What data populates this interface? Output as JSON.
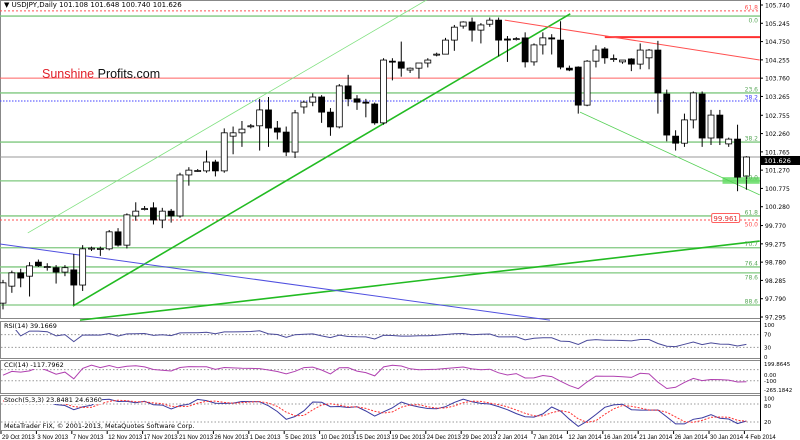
{
  "header": {
    "symbol": "USDJPY,Daily",
    "open": "101.108",
    "high": "101.648",
    "low": "100.740",
    "close": "101.626"
  },
  "logo": {
    "part1": "Sunshine",
    "part2": "Profits.com"
  },
  "watermark": "MetaTrader FIX, © 2001-2013, MetaQuotes Software Corp.",
  "indicators": {
    "rsi": {
      "label": "RSI(14) 39.1669",
      "axis": [
        "100",
        "70",
        "30",
        "0"
      ]
    },
    "cci": {
      "label": "CCI(14) -117.7962",
      "axis": [
        "199.8645",
        "0.00",
        "-100",
        "-265.1842"
      ]
    },
    "stoch": {
      "label": "Stoch(5,3,3) 23.8481 24.6360",
      "axis": [
        "100",
        "80",
        "20"
      ]
    }
  },
  "colors": {
    "bull": "#ffffff",
    "bear": "#000000",
    "fib": "#6fbf6f",
    "red": "#ff5050",
    "trend_green": "#22bb22",
    "blue": "#5050e0",
    "rsi": "#4a4a9a",
    "cci": "#b040b0"
  },
  "chart_data": {
    "type": "candlestick",
    "title": "USDJPY,Daily",
    "ylim": [
      97.295,
      105.74
    ],
    "price_ticks": [
      "105.740",
      "105.245",
      "104.750",
      "104.255",
      "103.760",
      "103.265",
      "102.755",
      "102.260",
      "101.765",
      "101.270",
      "100.775",
      "100.280",
      "99.770",
      "99.275",
      "98.780",
      "98.285",
      "97.790",
      "97.295"
    ],
    "current_price": "101.626",
    "dates": [
      {
        "label": "29 Oct 2013",
        "bar": 0
      },
      {
        "label": "3 Nov 2013",
        "bar": 4
      },
      {
        "label": "7 Nov 2013",
        "bar": 8
      },
      {
        "label": "12 Nov 2013",
        "bar": 12
      },
      {
        "label": "17 Nov 2013",
        "bar": 16
      },
      {
        "label": "21 Nov 2013",
        "bar": 20
      },
      {
        "label": "26 Nov 2013",
        "bar": 24
      },
      {
        "label": "1 Dec 2013",
        "bar": 28
      },
      {
        "label": "5 Dec 2013",
        "bar": 32
      },
      {
        "label": "10 Dec 2013",
        "bar": 36
      },
      {
        "label": "15 Dec 2013",
        "bar": 40
      },
      {
        "label": "19 Dec 2013",
        "bar": 44
      },
      {
        "label": "24 Dec 2013",
        "bar": 48
      },
      {
        "label": "29 Dec 2013",
        "bar": 52
      },
      {
        "label": "2 Jan 2014",
        "bar": 56
      },
      {
        "label": "7 Jan 2014",
        "bar": 60
      },
      {
        "label": "12 Jan 2014",
        "bar": 64
      },
      {
        "label": "16 Jan 2014",
        "bar": 68
      },
      {
        "label": "21 Jan 2014",
        "bar": 72
      },
      {
        "label": "26 Jan 2014",
        "bar": 76
      },
      {
        "label": "30 Jan 2014",
        "bar": 80
      },
      {
        "label": "4 Feb 2014",
        "bar": 84
      }
    ],
    "ohlc": [
      [
        97.67,
        98.3,
        97.5,
        98.22
      ],
      [
        98.13,
        98.55,
        97.95,
        98.49
      ],
      [
        98.49,
        98.6,
        98.1,
        98.35
      ],
      [
        98.4,
        98.78,
        97.85,
        98.68
      ],
      [
        98.78,
        98.85,
        98.65,
        98.68
      ],
      [
        98.65,
        98.75,
        98.55,
        98.66
      ],
      [
        98.63,
        98.7,
        98.2,
        98.51
      ],
      [
        98.51,
        98.7,
        98.4,
        98.63
      ],
      [
        98.57,
        99.0,
        97.62,
        98.16
      ],
      [
        98.16,
        99.24,
        98.0,
        99.14
      ],
      [
        99.14,
        99.2,
        99.08,
        99.16
      ],
      [
        99.14,
        99.2,
        98.95,
        99.15
      ],
      [
        99.14,
        99.65,
        99.1,
        99.6
      ],
      [
        99.6,
        99.7,
        99.2,
        99.24
      ],
      [
        99.24,
        100.1,
        99.15,
        100.06
      ],
      [
        100.03,
        100.4,
        99.9,
        100.16
      ],
      [
        100.22,
        100.3,
        100.18,
        100.23
      ],
      [
        100.25,
        100.4,
        99.8,
        99.92
      ],
      [
        99.92,
        100.25,
        99.7,
        100.16
      ],
      [
        100.16,
        100.22,
        99.85,
        100.03
      ],
      [
        100.03,
        101.2,
        99.98,
        101.14
      ],
      [
        101.14,
        101.35,
        100.85,
        101.27
      ],
      [
        101.25,
        101.3,
        101.22,
        101.26
      ],
      [
        101.25,
        101.8,
        101.2,
        101.49
      ],
      [
        101.49,
        101.55,
        101.1,
        101.25
      ],
      [
        101.25,
        102.4,
        101.2,
        102.28
      ],
      [
        102.19,
        102.45,
        101.7,
        102.28
      ],
      [
        102.28,
        102.6,
        101.9,
        102.38
      ],
      [
        102.46,
        102.52,
        102.4,
        102.47
      ],
      [
        102.47,
        103.2,
        101.8,
        102.9
      ],
      [
        102.9,
        103.25,
        101.9,
        102.41
      ],
      [
        102.41,
        102.6,
        102.1,
        102.3
      ],
      [
        102.3,
        102.45,
        101.65,
        101.76
      ],
      [
        101.76,
        102.9,
        101.6,
        102.82
      ],
      [
        102.98,
        103.15,
        102.8,
        103.11
      ],
      [
        103.11,
        103.35,
        103.0,
        103.25
      ],
      [
        103.25,
        103.3,
        102.55,
        102.84
      ],
      [
        102.84,
        102.95,
        102.2,
        102.44
      ],
      [
        102.44,
        103.6,
        102.4,
        103.55
      ],
      [
        103.55,
        103.85,
        103.0,
        103.2
      ],
      [
        103.2,
        103.3,
        102.9,
        103.11
      ],
      [
        103.11,
        103.2,
        102.7,
        103.09
      ],
      [
        103.06,
        103.1,
        102.5,
        102.55
      ],
      [
        102.55,
        104.3,
        102.5,
        104.25
      ],
      [
        104.22,
        104.3,
        103.7,
        104.2
      ],
      [
        104.2,
        104.75,
        103.8,
        104.03
      ],
      [
        103.98,
        104.05,
        103.9,
        104.03
      ],
      [
        104.03,
        104.15,
        103.75,
        104.17
      ],
      [
        104.17,
        104.3,
        104.05,
        104.25
      ],
      [
        104.39,
        104.45,
        104.35,
        104.41
      ],
      [
        104.41,
        104.85,
        104.4,
        104.79
      ],
      [
        104.79,
        105.2,
        104.5,
        105.14
      ],
      [
        105.17,
        105.3,
        105.1,
        105.28
      ],
      [
        105.28,
        105.4,
        104.75,
        105.06
      ],
      [
        105.06,
        105.25,
        104.7,
        105.2
      ],
      [
        105.22,
        105.4,
        105.15,
        105.33
      ],
      [
        105.33,
        105.4,
        104.35,
        104.79
      ],
      [
        104.82,
        104.9,
        104.2,
        104.79
      ],
      [
        104.82,
        104.87,
        104.78,
        104.83
      ],
      [
        104.85,
        105.0,
        104.05,
        104.2
      ],
      [
        104.2,
        104.7,
        104.1,
        104.66
      ],
      [
        104.66,
        105.0,
        104.4,
        104.85
      ],
      [
        104.85,
        104.95,
        104.4,
        104.82
      ],
      [
        104.79,
        105.3,
        104.0,
        104.06
      ],
      [
        104.03,
        104.1,
        103.95,
        103.98
      ],
      [
        104.06,
        104.08,
        102.8,
        103.03
      ],
      [
        103.03,
        104.25,
        103.0,
        104.22
      ],
      [
        104.22,
        104.65,
        104.05,
        104.52
      ],
      [
        104.55,
        104.6,
        104.15,
        104.31
      ],
      [
        104.28,
        104.4,
        104.2,
        104.29
      ],
      [
        104.2,
        104.25,
        104.15,
        104.25
      ],
      [
        104.28,
        104.3,
        103.95,
        104.14
      ],
      [
        104.14,
        104.7,
        104.0,
        104.52
      ],
      [
        104.31,
        104.55,
        104.0,
        104.52
      ],
      [
        104.52,
        104.77,
        102.8,
        103.36
      ],
      [
        103.33,
        103.45,
        102.05,
        102.22
      ],
      [
        102.19,
        102.35,
        101.8,
        102.0
      ],
      [
        102.0,
        102.8,
        101.9,
        102.63
      ],
      [
        102.63,
        103.4,
        102.4,
        103.36
      ],
      [
        103.33,
        103.4,
        101.9,
        102.14
      ],
      [
        102.14,
        102.9,
        101.95,
        102.76
      ],
      [
        102.76,
        102.9,
        101.95,
        102.14
      ],
      [
        101.98,
        102.15,
        101.9,
        102.11
      ],
      [
        102.11,
        102.5,
        100.7,
        101.08
      ],
      [
        101.108,
        101.648,
        100.74,
        101.626
      ]
    ],
    "horizontal_lines": [
      {
        "name": "fib-61.8-top",
        "price": 105.58,
        "color": "#ff5050",
        "style": "dashed",
        "from_bar": null
      },
      {
        "name": "fib-0.0",
        "price": 105.44,
        "color": "#7fc87f",
        "style": "solid",
        "from_bar": null
      },
      {
        "name": "resistance-red-thick",
        "price": 104.87,
        "color": "#ff3030",
        "style": "thick",
        "from_bar": 68
      },
      {
        "name": "resistance-red",
        "price": 103.76,
        "color": "#ff6060",
        "style": "solid",
        "from_bar": null
      },
      {
        "name": "fib-23.6",
        "price": 103.36,
        "color": "#7fc87f",
        "style": "solid",
        "from_bar": null
      },
      {
        "name": "fib-38.2-blue",
        "price": 103.14,
        "color": "#4040ff",
        "style": "dotted",
        "from_bar": null
      },
      {
        "name": "fib-38.2",
        "price": 102.03,
        "color": "#7fc87f",
        "style": "solid",
        "from_bar": null
      },
      {
        "name": "current-price-line",
        "price": 101.626,
        "color": "#999999",
        "style": "solid",
        "from_bar": null
      },
      {
        "name": "fib-50.0",
        "price": 100.98,
        "color": "#7fc87f",
        "style": "solid",
        "from_bar": null
      },
      {
        "name": "fib-61.8",
        "price": 100.03,
        "color": "#7fc87f",
        "style": "solid",
        "from_bar": null
      },
      {
        "name": "fib-50.0-red",
        "price": 99.92,
        "color": "#ff5050",
        "style": "dashed",
        "from_bar": null
      },
      {
        "name": "fib-70.7",
        "price": 99.17,
        "color": "#7fc87f",
        "style": "solid",
        "from_bar": null
      },
      {
        "name": "fib-76.4",
        "price": 98.65,
        "color": "#7fc87f",
        "style": "solid",
        "from_bar": null
      },
      {
        "name": "fib-78.6",
        "price": 98.49,
        "color": "#7fc87f",
        "style": "solid",
        "from_bar": null
      },
      {
        "name": "fib-88.6",
        "price": 97.62,
        "color": "#7fc87f",
        "style": "solid",
        "from_bar": null
      }
    ],
    "fib_labels": [
      {
        "label": "61.8",
        "price": 105.58,
        "color": "#ff5050"
      },
      {
        "label": "0.0",
        "price": 105.44,
        "color": "#5aa85a"
      },
      {
        "label": "23.6",
        "price": 103.36,
        "color": "#5aa85a"
      },
      {
        "label": "38.2",
        "price": 103.14,
        "color": "#4040ff"
      },
      {
        "label": "38.2",
        "price": 102.03,
        "color": "#5aa85a"
      },
      {
        "label": "50.0",
        "price": 100.98,
        "color": "#5aa85a"
      },
      {
        "label": "61.8",
        "price": 100.03,
        "color": "#5aa85a"
      },
      {
        "label": "50.0",
        "price": 99.92,
        "color": "#ff5050"
      },
      {
        "label": "70.7",
        "price": 99.17,
        "color": "#5aa85a"
      },
      {
        "label": "76.4",
        "price": 98.65,
        "color": "#5aa85a"
      },
      {
        "label": "78.6",
        "price": 98.49,
        "color": "#5aa85a"
      },
      {
        "label": "88.6",
        "price": 97.62,
        "color": "#5aa85a"
      }
    ],
    "trend_lines": [
      {
        "name": "rising-support-thick",
        "from": [
          7.9,
          97.59
        ],
        "to": [
          64.1,
          105.5
        ],
        "color": "#22bb22",
        "width": 1.6
      },
      {
        "name": "rising-channel-thin",
        "from": [
          2.8,
          99.57
        ],
        "to": [
          47.9,
          105.88
        ],
        "color": "#7fe07f",
        "width": 0.8
      },
      {
        "name": "long-term-support",
        "from": [
          8.7,
          97.21
        ],
        "to": [
          85.5,
          99.35
        ],
        "color": "#22bb22",
        "width": 1.6
      },
      {
        "name": "declining-blue",
        "from": [
          -0.34,
          99.27
        ],
        "to": [
          61.8,
          97.21
        ],
        "color": "#5050e0",
        "width": 1
      },
      {
        "name": "declining-support-thin",
        "from": [
          65.2,
          102.84
        ],
        "to": [
          85.5,
          100.6
        ],
        "color": "#55d055",
        "width": 0.8
      },
      {
        "name": "declining-resistance-red",
        "from": [
          56.7,
          105.33
        ],
        "to": [
          85.5,
          104.25
        ],
        "color": "#ff5050",
        "width": 1
      }
    ],
    "support_zone": {
      "from_bar": 81.3,
      "to_bar": 85.5,
      "low": 100.9,
      "high": 101.08,
      "color": "#66dd66"
    },
    "price_tag": {
      "label": "99.961",
      "bar": 80.3,
      "price": 99.96
    }
  }
}
